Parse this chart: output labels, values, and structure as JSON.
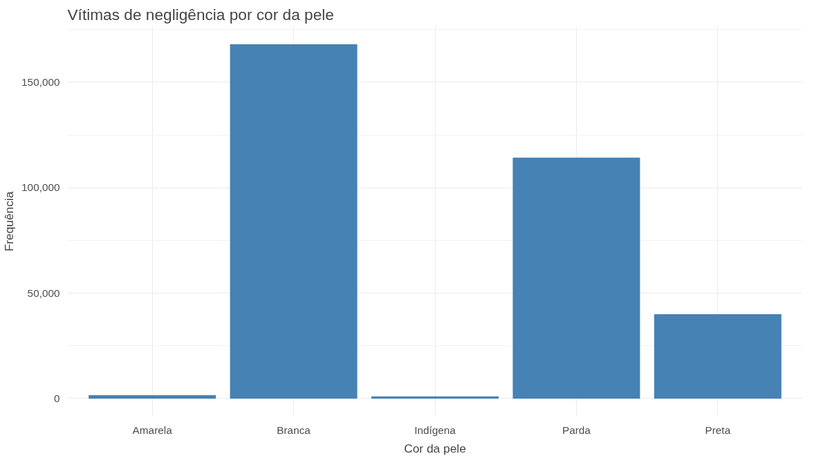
{
  "chart_data": {
    "type": "bar",
    "title": "Vítimas de negligência por cor da pele",
    "xlabel": "Cor da pele",
    "ylabel": "Frequência",
    "categories": [
      "Amarela",
      "Branca",
      "Indígena",
      "Parda",
      "Preta"
    ],
    "values": [
      1600,
      168000,
      1000,
      114300,
      40000
    ],
    "color": "#4682b4",
    "ylim": [
      -8400,
      176400
    ],
    "yticks": [
      {
        "value": 0,
        "label": "0"
      },
      {
        "value": 50000,
        "label": "50,000"
      },
      {
        "value": 100000,
        "label": "100,000"
      },
      {
        "value": 150000,
        "label": "150,000"
      }
    ],
    "grid": true
  }
}
